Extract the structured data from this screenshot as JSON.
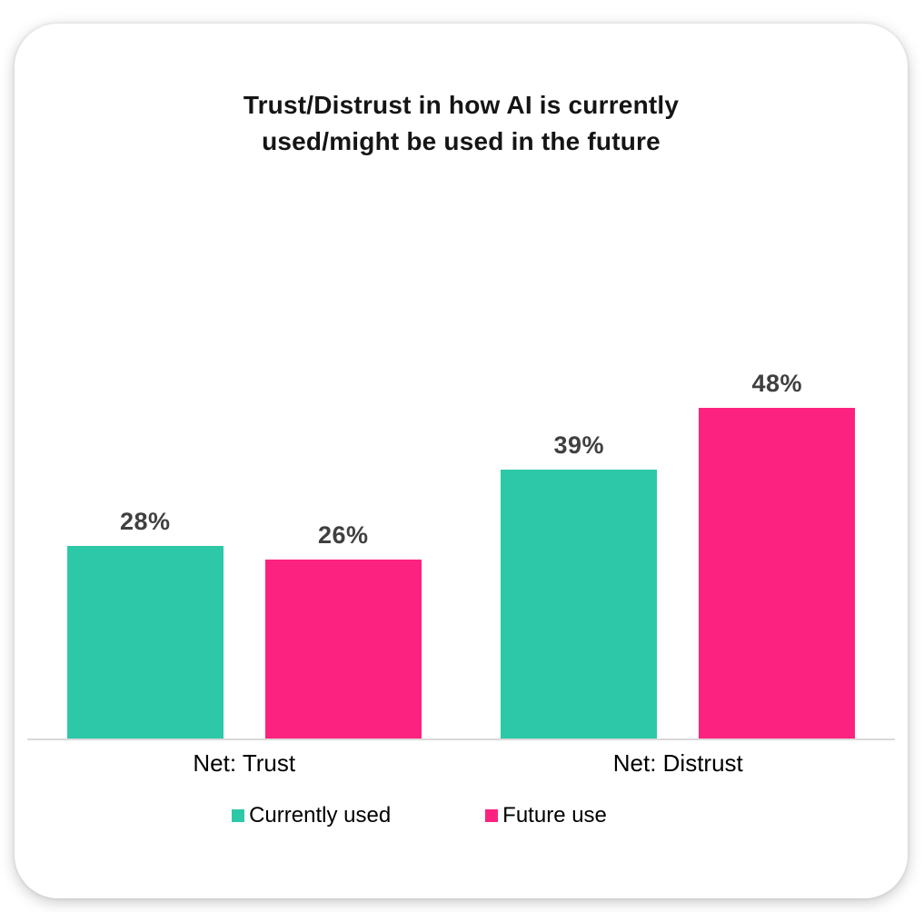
{
  "chart_data": {
    "type": "bar",
    "title": "Trust/Distrust in how AI is currently used/might be used in the future",
    "categories": [
      "Net: Trust",
      "Net: Distrust"
    ],
    "series": [
      {
        "name": "Currently used",
        "color": "#2dc8a8",
        "values": [
          28,
          39
        ],
        "labels": [
          "28%",
          "39%"
        ]
      },
      {
        "name": "Future use",
        "color": "#fc2380",
        "values": [
          26,
          48
        ],
        "labels": [
          "26%",
          "48%"
        ]
      }
    ],
    "ylim": [
      0,
      55
    ],
    "grid": false,
    "axis_line_color": "#d9d9d9",
    "value_label_color": "#404040",
    "legend_position": "bottom"
  }
}
